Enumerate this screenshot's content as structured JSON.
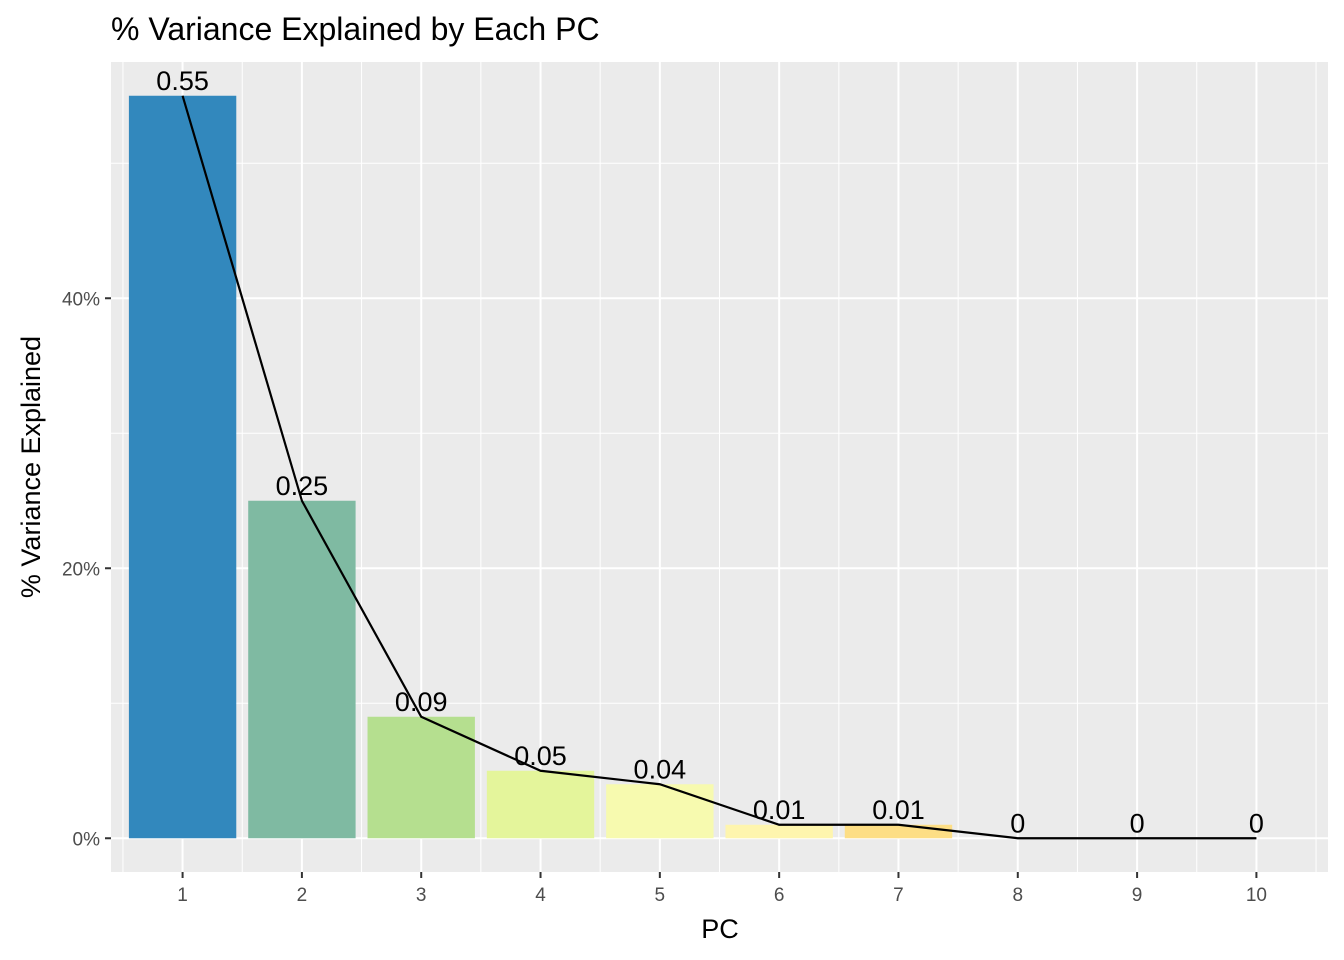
{
  "chart_data": {
    "type": "bar",
    "title": "% Variance Explained by Each PC",
    "xlabel": "PC",
    "ylabel": "% Variance Explained",
    "categories": [
      "1",
      "2",
      "3",
      "4",
      "5",
      "6",
      "7",
      "8",
      "9",
      "10"
    ],
    "values": [
      0.55,
      0.25,
      0.09,
      0.05,
      0.04,
      0.01,
      0.01,
      0,
      0,
      0
    ],
    "data_labels": [
      "0.55",
      "0.25",
      "0.09",
      "0.05",
      "0.04",
      "0.01",
      "0.01",
      "0",
      "0",
      "0"
    ],
    "line_overlay": true,
    "ylim": [
      -0.025,
      0.575
    ],
    "y_ticks": [
      {
        "value": 0,
        "label": "0%"
      },
      {
        "value": 0.2,
        "label": "20%"
      },
      {
        "value": 0.4,
        "label": "40%"
      }
    ],
    "y_minor_ticks": [
      0.1,
      0.3,
      0.5
    ],
    "grid": true,
    "panel_background": "#ebebeb",
    "grid_color": "#ffffff",
    "line_color": "#000000",
    "bar_colors": [
      "#3288bd",
      "#7fbaa2",
      "#b5df8f",
      "#e4f59b",
      "#f7faaf",
      "#fef5ae",
      "#fdde85",
      "#fcbf6c",
      "#f89f5a",
      "#ee6a43"
    ]
  }
}
